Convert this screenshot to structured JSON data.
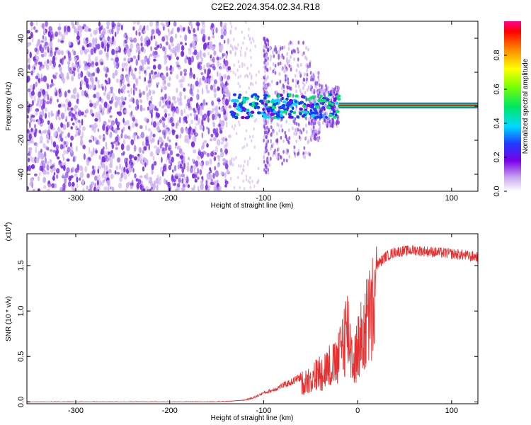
{
  "title": "C2E2.2024.354.02.34.R18",
  "colors": {
    "snr_line": "#e83030",
    "spectro_dot": "#7a30e8",
    "spectro_dot_light": "#cdb2f2",
    "carrier": "#e82020"
  },
  "chart_data": [
    {
      "type": "heatmap",
      "xlabel": "Height of straight line (km)",
      "ylabel": "Frequency (Hz)",
      "xlim": [
        -352,
        128
      ],
      "ylim": [
        -50,
        50
      ],
      "xticks": [
        -300,
        -200,
        -100,
        0,
        100
      ],
      "yticks": [
        -40,
        -20,
        0,
        20,
        40
      ],
      "colorbar": {
        "label": "Normalized spectral amplitude",
        "range": [
          0,
          1
        ],
        "ticks": [
          "0.0",
          "0.2",
          "0.4",
          "0.6",
          "0.8"
        ],
        "tick_values": [
          0.0,
          0.2,
          0.4,
          0.6,
          0.8
        ],
        "colormap": "rainbow"
      },
      "features": {
        "noise_region_x": [
          -352,
          -135
        ],
        "transition_region_x": [
          -135,
          -20
        ],
        "carrier_region_x": [
          -20,
          128
        ],
        "carrier_frequency": 0.5
      }
    },
    {
      "type": "line",
      "xlabel": "Height of straight line (km)",
      "ylabel": "SNR (10 * v/v)",
      "multiplier": "(x10",
      "multiplier_exp": "4",
      "xlim": [
        -352,
        128
      ],
      "ylim": [
        -0.02,
        1.85
      ],
      "xticks": [
        -300,
        -200,
        -100,
        0,
        100
      ],
      "yticks": [
        "0.0",
        "0.5",
        "1.0",
        "1.5"
      ],
      "ytick_values": [
        0.0,
        0.5,
        1.0,
        1.5
      ],
      "series": [
        {
          "x": [
            -352,
            -300,
            -250,
            -200,
            -160,
            -140,
            -120,
            -110,
            -100,
            -90,
            -80,
            -70,
            -60,
            -50,
            -40,
            -35,
            -30,
            -25,
            -20,
            -15,
            -10,
            -5,
            0,
            5,
            10,
            15,
            20,
            30,
            40,
            50,
            60,
            70,
            80,
            90,
            100,
            110,
            120,
            128
          ],
          "y": [
            0.0,
            0.0,
            0.0,
            0.0,
            0.0,
            0.005,
            0.02,
            0.05,
            0.1,
            0.13,
            0.18,
            0.22,
            0.28,
            0.35,
            0.45,
            0.5,
            0.55,
            0.55,
            0.65,
            1.0,
            1.1,
            0.6,
            0.8,
            1.0,
            1.2,
            1.35,
            1.5,
            1.6,
            1.65,
            1.66,
            1.67,
            1.66,
            1.65,
            1.64,
            1.63,
            1.62,
            1.6,
            1.6
          ]
        }
      ]
    }
  ]
}
